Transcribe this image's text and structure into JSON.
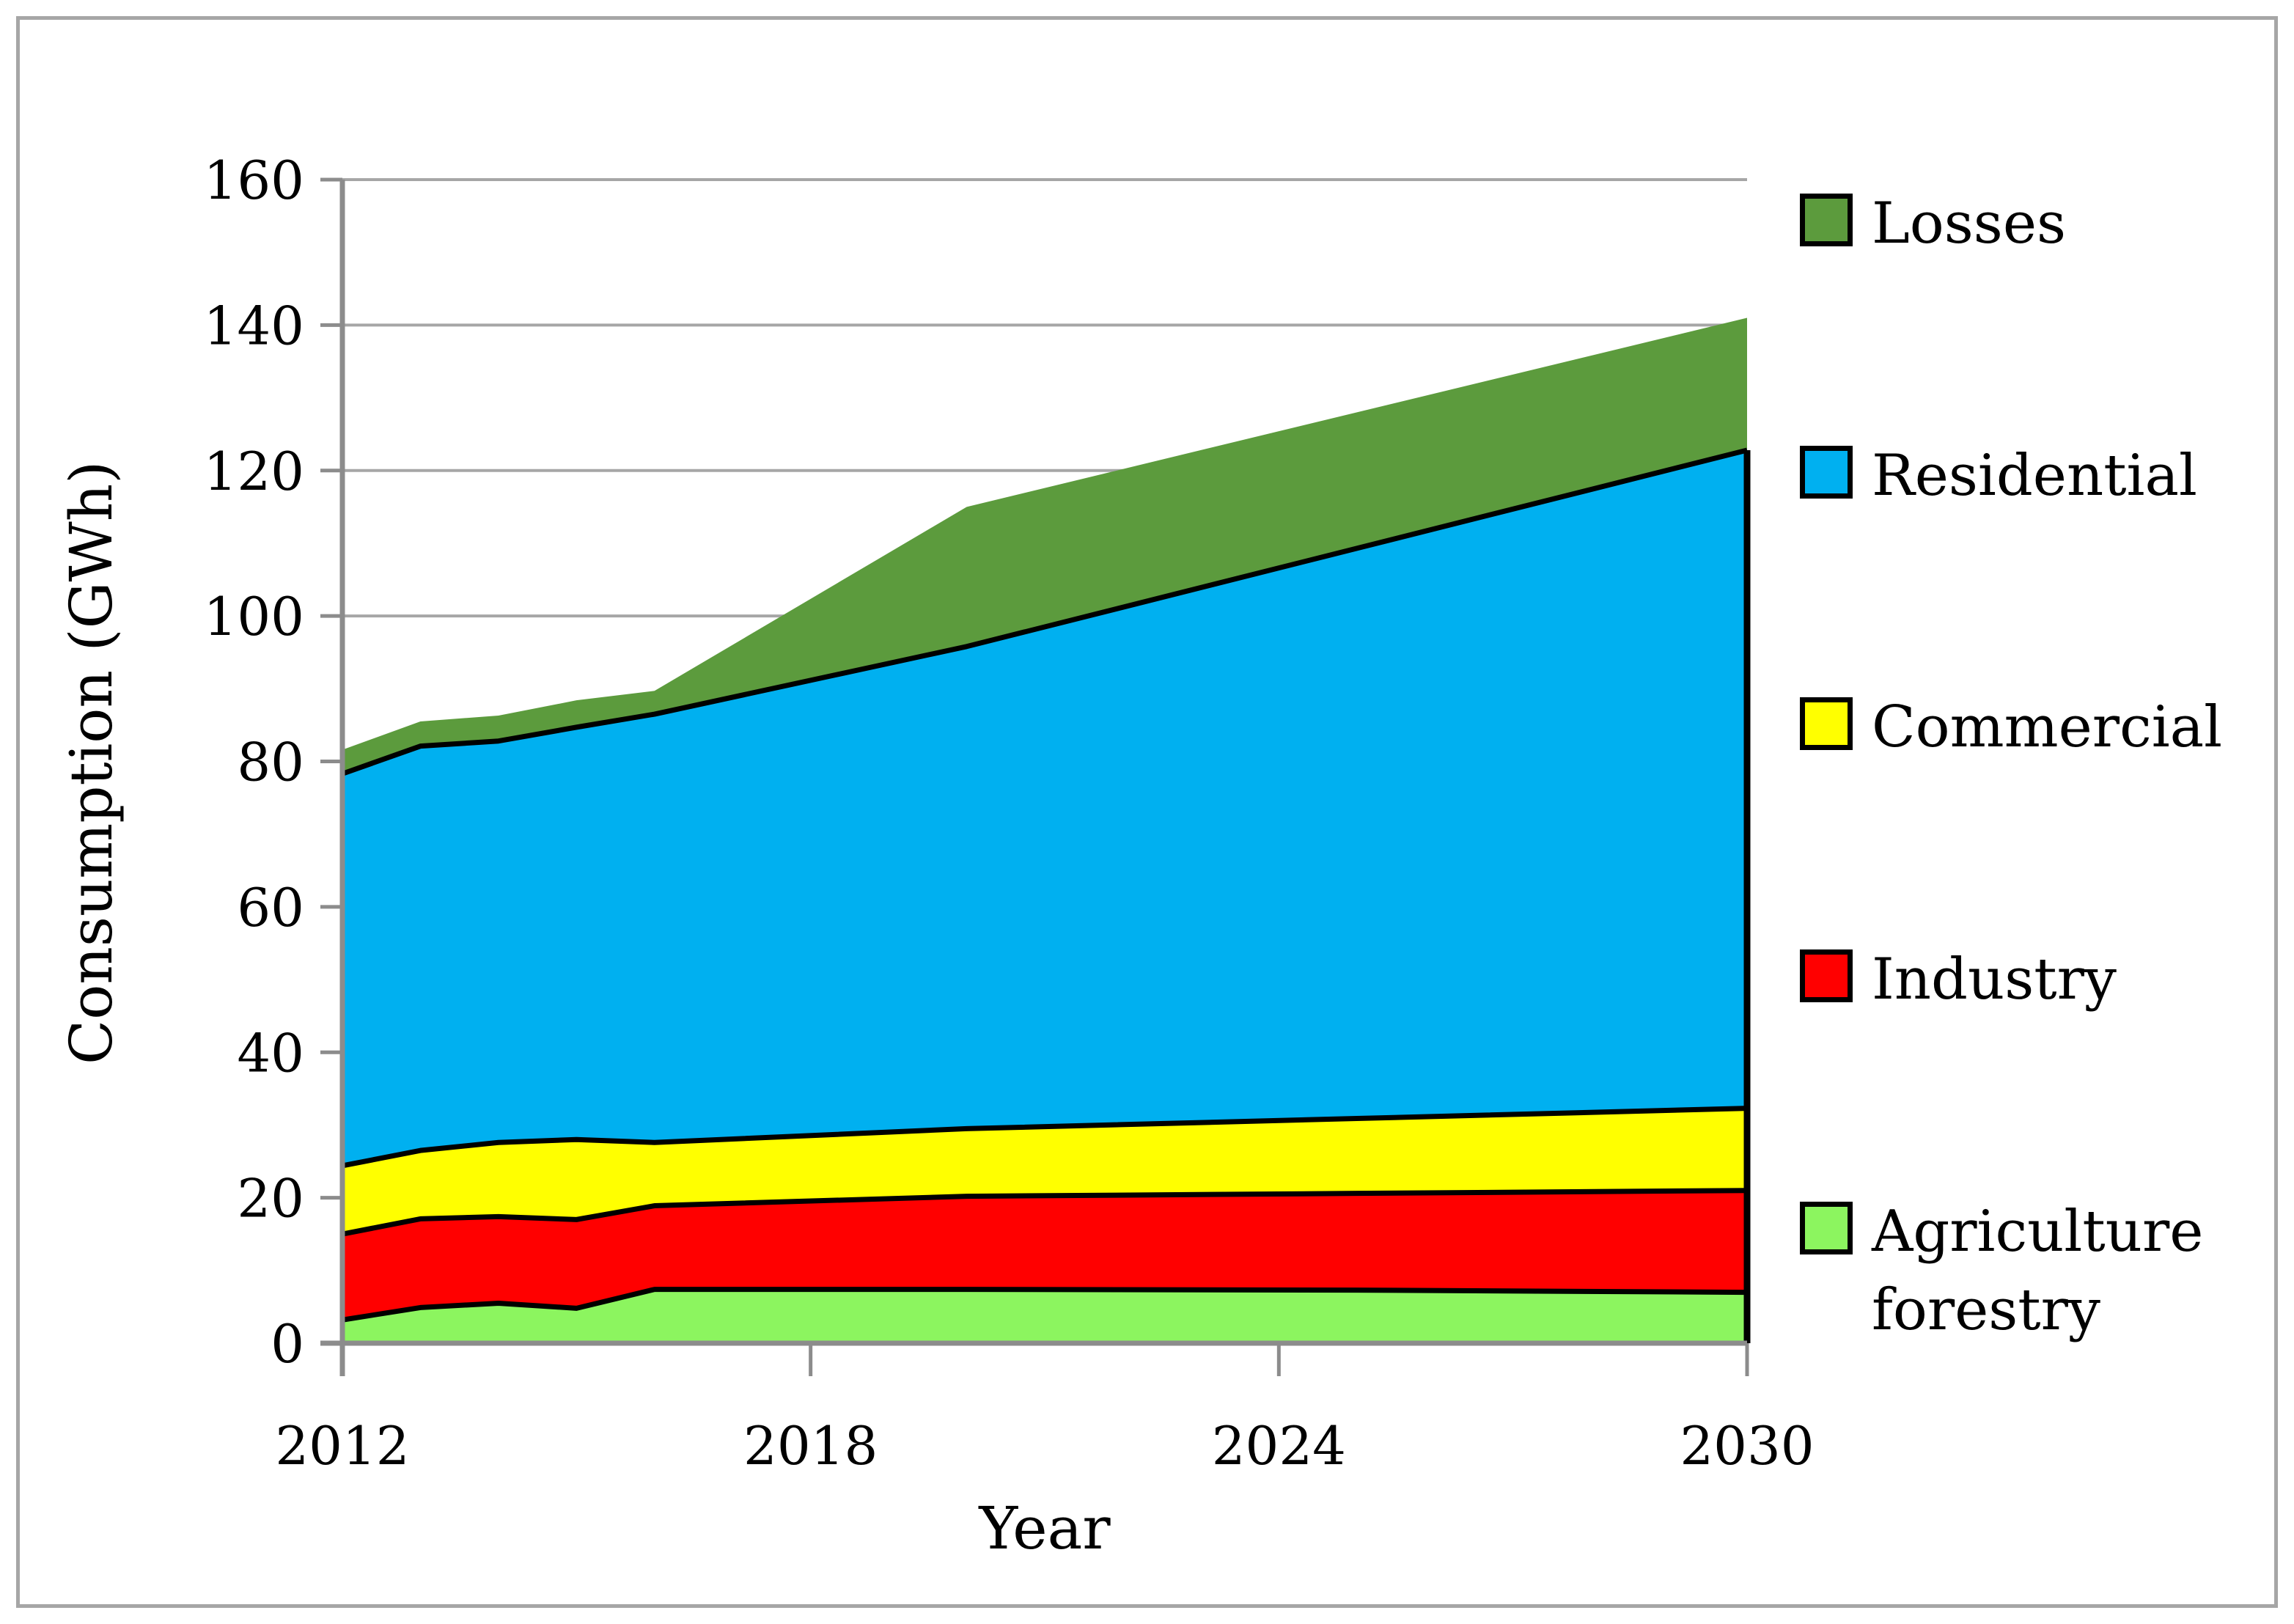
{
  "figure": {
    "background": "#FFFFFF",
    "border_color": "#A6A6A6"
  },
  "chart_data": {
    "type": "area",
    "stacked": true,
    "title": "",
    "xlabel": "Year",
    "ylabel": "Consumption (GWh)",
    "x": [
      2012,
      2013,
      2014,
      2015,
      2016,
      2020,
      2025,
      2030
    ],
    "x_tick_labels": [
      2012,
      2018,
      2024,
      2030
    ],
    "xlim": [
      2012,
      2030
    ],
    "ylim": [
      0,
      160
    ],
    "y_tick_step": 20,
    "y_tick_labels": [
      0,
      20,
      40,
      60,
      80,
      100,
      120,
      140,
      160
    ],
    "grid": "horizontal",
    "grid_color": "#A6A6A6",
    "axis_color": "#8C8C8C",
    "outline_color": "#000000",
    "legend_position": "right",
    "series": [
      {
        "name": "Agriculture forestry",
        "color": "#8CF55F",
        "values": [
          3.2,
          4.9,
          5.5,
          4.8,
          7.4,
          7.4,
          7.3,
          7.0
        ]
      },
      {
        "name": "Industry",
        "color": "#FF0000",
        "values": [
          11.8,
          12.2,
          11.9,
          12.2,
          11.5,
          12.8,
          13.3,
          14.0
        ]
      },
      {
        "name": "Commercial",
        "color": "#FFFF00",
        "values": [
          9.4,
          9.4,
          10.2,
          11.0,
          8.7,
          9.3,
          10.3,
          11.3
        ]
      },
      {
        "name": "Residential",
        "color": "#00B0F0",
        "values": [
          53.9,
          55.6,
          55.2,
          56.7,
          58.9,
          66.3,
          78.4,
          90.5
        ]
      },
      {
        "name": "Losses",
        "color": "#5C9B3D",
        "values": [
          3.3,
          3.4,
          3.5,
          3.7,
          3.2,
          19.2,
          18.7,
          18.2
        ]
      }
    ],
    "cumulative_totals_note": "stack tops: agri 3.2-7.0; industry 15-21; commercial 24.4-32.3; residential 78.3-122.8; total 81.6-141.0"
  },
  "legend": {
    "items": [
      {
        "key": "losses",
        "label": "Losses",
        "color": "#5C9B3D"
      },
      {
        "key": "residential",
        "label": "Residential",
        "color": "#00B0F0"
      },
      {
        "key": "commercial",
        "label": "Commercial",
        "color": "#FFFF00"
      },
      {
        "key": "industry",
        "label": "Industry",
        "color": "#FF0000"
      },
      {
        "key": "agriculture",
        "label": "Agriculture\nforestry",
        "color": "#8CF55F"
      }
    ]
  }
}
